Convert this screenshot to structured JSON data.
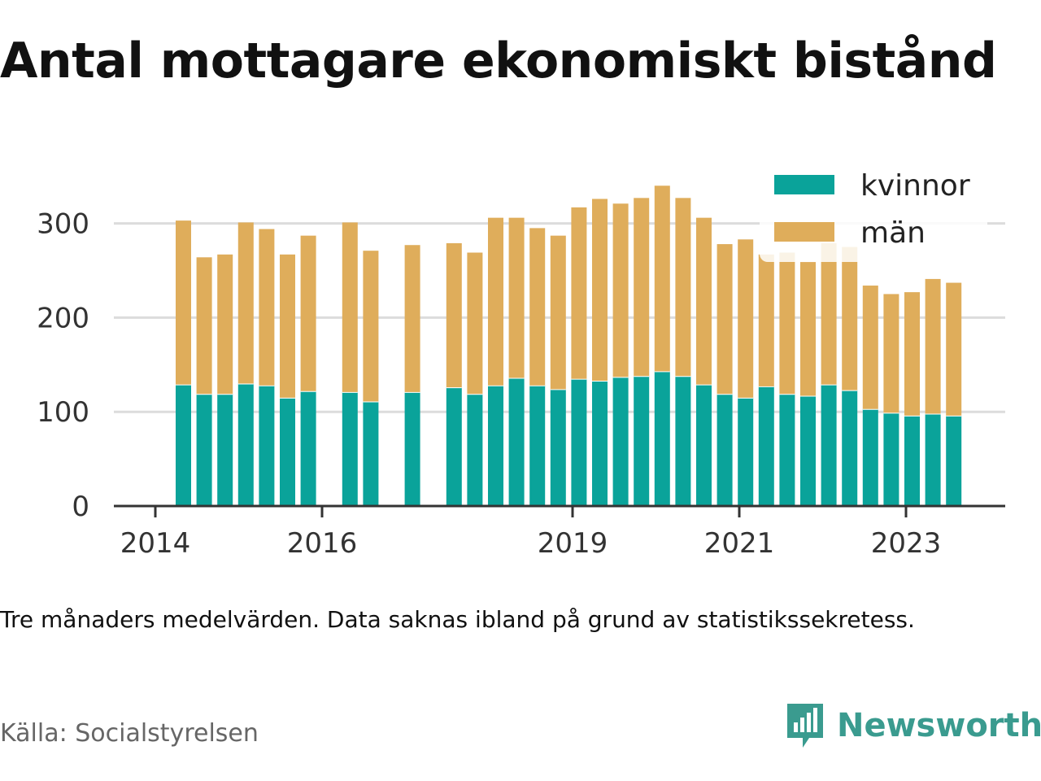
{
  "title": "Antal mottagare ekonomiskt bistånd",
  "note": "Tre månaders medelvärden. Data saknas ibland på grund av statistikssekretess.",
  "source": "Källa: Socialstyrelsen",
  "brand": {
    "name": "Newsworthy",
    "icon": "newsworthy-logo-icon",
    "color": "#3a9b8f"
  },
  "chart_data": {
    "type": "bar",
    "stacked": true,
    "x_ticks": [
      "2014",
      "2016",
      "2019",
      "2021",
      "2023"
    ],
    "y_ticks": [
      0,
      100,
      200,
      300
    ],
    "ylim": [
      0,
      340
    ],
    "grid": true,
    "legend_position": "top-right",
    "colors": {
      "kvinnor": "#0aa39a",
      "män": "#dfad5b"
    },
    "series": [
      {
        "name": "kvinnor",
        "values": [
          129,
          119,
          119,
          130,
          128,
          115,
          122,
          null,
          121,
          111,
          null,
          121,
          null,
          126,
          119,
          128,
          136,
          128,
          124,
          135,
          133,
          137,
          138,
          143,
          138,
          129,
          119,
          115,
          127,
          119,
          117,
          129,
          123,
          103,
          99,
          96,
          98,
          96
        ]
      },
      {
        "name": "män",
        "values": [
          174,
          145,
          148,
          171,
          166,
          152,
          165,
          null,
          180,
          160,
          null,
          156,
          null,
          153,
          150,
          178,
          170,
          167,
          163,
          182,
          193,
          184,
          189,
          197,
          189,
          177,
          159,
          168,
          140,
          150,
          142,
          150,
          152,
          131,
          126,
          131,
          143,
          141
        ]
      }
    ]
  }
}
